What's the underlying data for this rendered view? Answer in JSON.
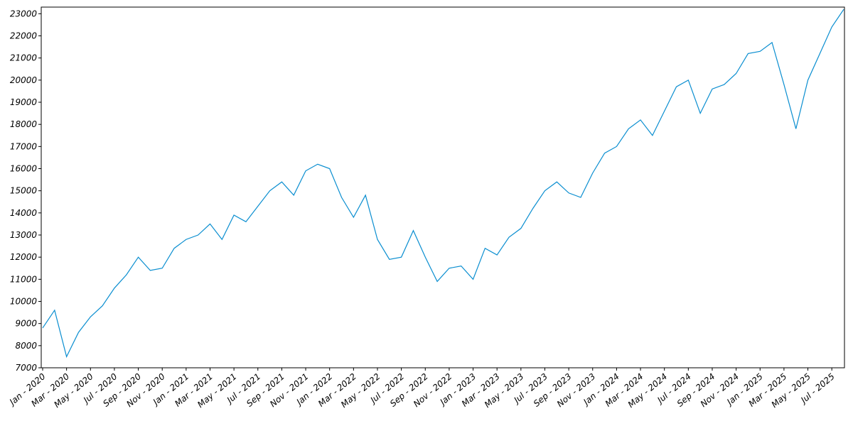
{
  "chart_data": {
    "type": "line",
    "categories": [
      "Jan - 2020",
      null,
      "Mar - 2020",
      null,
      "May - 2020",
      null,
      "Jul - 2020",
      null,
      "Sep - 2020",
      null,
      "Nov - 2020",
      null,
      "Jan - 2021",
      null,
      "Mar - 2021",
      null,
      "May - 2021",
      null,
      "Jul - 2021",
      null,
      "Sep - 2021",
      null,
      "Nov - 2021",
      null,
      "Jan - 2022",
      null,
      "Mar - 2022",
      null,
      "May - 2022",
      null,
      "Jul - 2022",
      null,
      "Sep - 2022",
      null,
      "Nov - 2022",
      null,
      "Jan - 2023",
      null,
      "Mar - 2023",
      null,
      "May - 2023",
      null,
      "Jul - 2023",
      null,
      "Sep - 2023",
      null,
      "Nov - 2023",
      null,
      "Jan - 2024",
      null,
      "Mar - 2024",
      null,
      "May - 2024",
      null,
      "Jul - 2024",
      null,
      "Sep - 2024",
      null,
      "Nov - 2024",
      null,
      "Jan - 2025",
      null,
      "Mar - 2025",
      null,
      "May - 2025",
      null,
      "Jul - 2025",
      null
    ],
    "values": [
      8800,
      9600,
      7500,
      8600,
      9300,
      9800,
      10600,
      11200,
      12000,
      11400,
      11500,
      12400,
      12800,
      13000,
      13500,
      12800,
      13900,
      13600,
      14300,
      15000,
      15400,
      14800,
      15900,
      16200,
      16000,
      14700,
      13800,
      14800,
      12800,
      11900,
      12000,
      13200,
      12000,
      10900,
      11500,
      11600,
      11000,
      12400,
      12100,
      12900,
      13300,
      14200,
      15000,
      15400,
      14900,
      14700,
      15800,
      16700,
      17000,
      17800,
      18200,
      17500,
      18600,
      19700,
      20000,
      18500,
      19600,
      19800,
      20300,
      21200,
      21300,
      21700,
      19800,
      17800,
      20000,
      21200,
      22400,
      23200
    ],
    "color": "#0a8ed0",
    "ylim": [
      7000,
      23300
    ],
    "yticks": [
      7000,
      8000,
      9000,
      10000,
      11000,
      12000,
      13000,
      14000,
      15000,
      16000,
      17000,
      18000,
      19000,
      20000,
      21000,
      22000,
      23000
    ]
  }
}
